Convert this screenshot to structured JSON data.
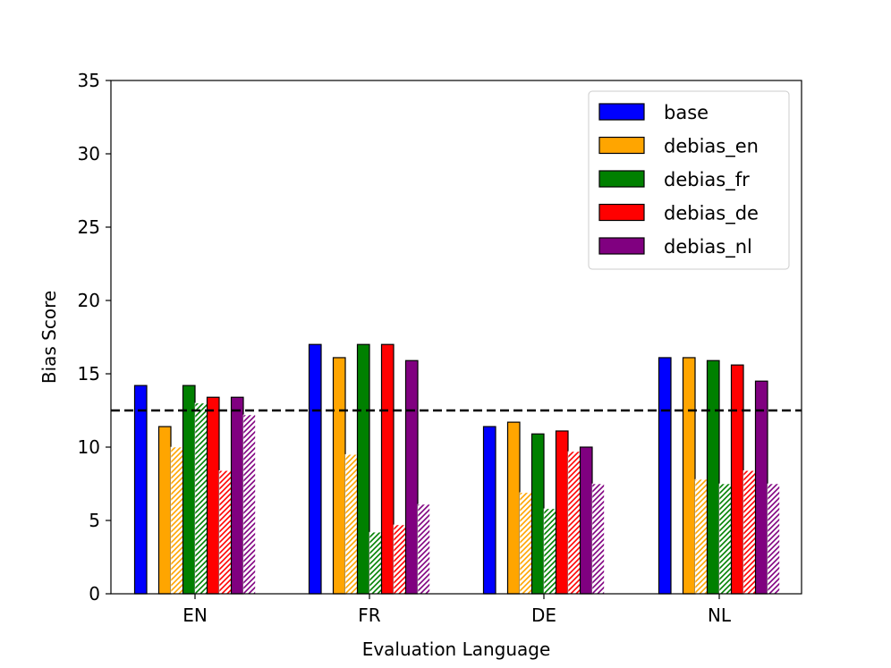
{
  "chart_data": {
    "type": "bar",
    "title": "",
    "xlabel": "Evaluation Language",
    "ylabel": "Bias Score",
    "ylim": [
      0,
      35
    ],
    "yticks": [
      0,
      5,
      10,
      15,
      20,
      25,
      30,
      35
    ],
    "categories": [
      "EN",
      "FR",
      "DE",
      "NL"
    ],
    "legend_position": "top-right",
    "reference_line": {
      "value": 12.5,
      "style": "dashed",
      "color": "#000000"
    },
    "series": [
      {
        "name": "base",
        "color": "#0000ff",
        "solid": [
          14.2,
          17.0,
          11.4,
          16.1
        ],
        "hatched": [
          null,
          null,
          null,
          null
        ]
      },
      {
        "name": "debias_en",
        "color": "#ffa500",
        "solid": [
          11.4,
          16.1,
          11.7,
          16.1
        ],
        "hatched": [
          10.0,
          9.5,
          6.9,
          7.8
        ]
      },
      {
        "name": "debias_fr",
        "color": "#008000",
        "solid": [
          14.2,
          17.0,
          10.9,
          15.9
        ],
        "hatched": [
          13.0,
          4.2,
          5.8,
          7.5
        ]
      },
      {
        "name": "debias_de",
        "color": "#ff0000",
        "solid": [
          13.4,
          17.0,
          11.1,
          15.6
        ],
        "hatched": [
          8.4,
          4.7,
          9.7,
          8.4
        ]
      },
      {
        "name": "debias_nl",
        "color": "#800080",
        "solid": [
          13.4,
          15.9,
          10.0,
          14.5
        ],
        "hatched": [
          12.2,
          6.1,
          7.5,
          7.5
        ]
      }
    ]
  }
}
